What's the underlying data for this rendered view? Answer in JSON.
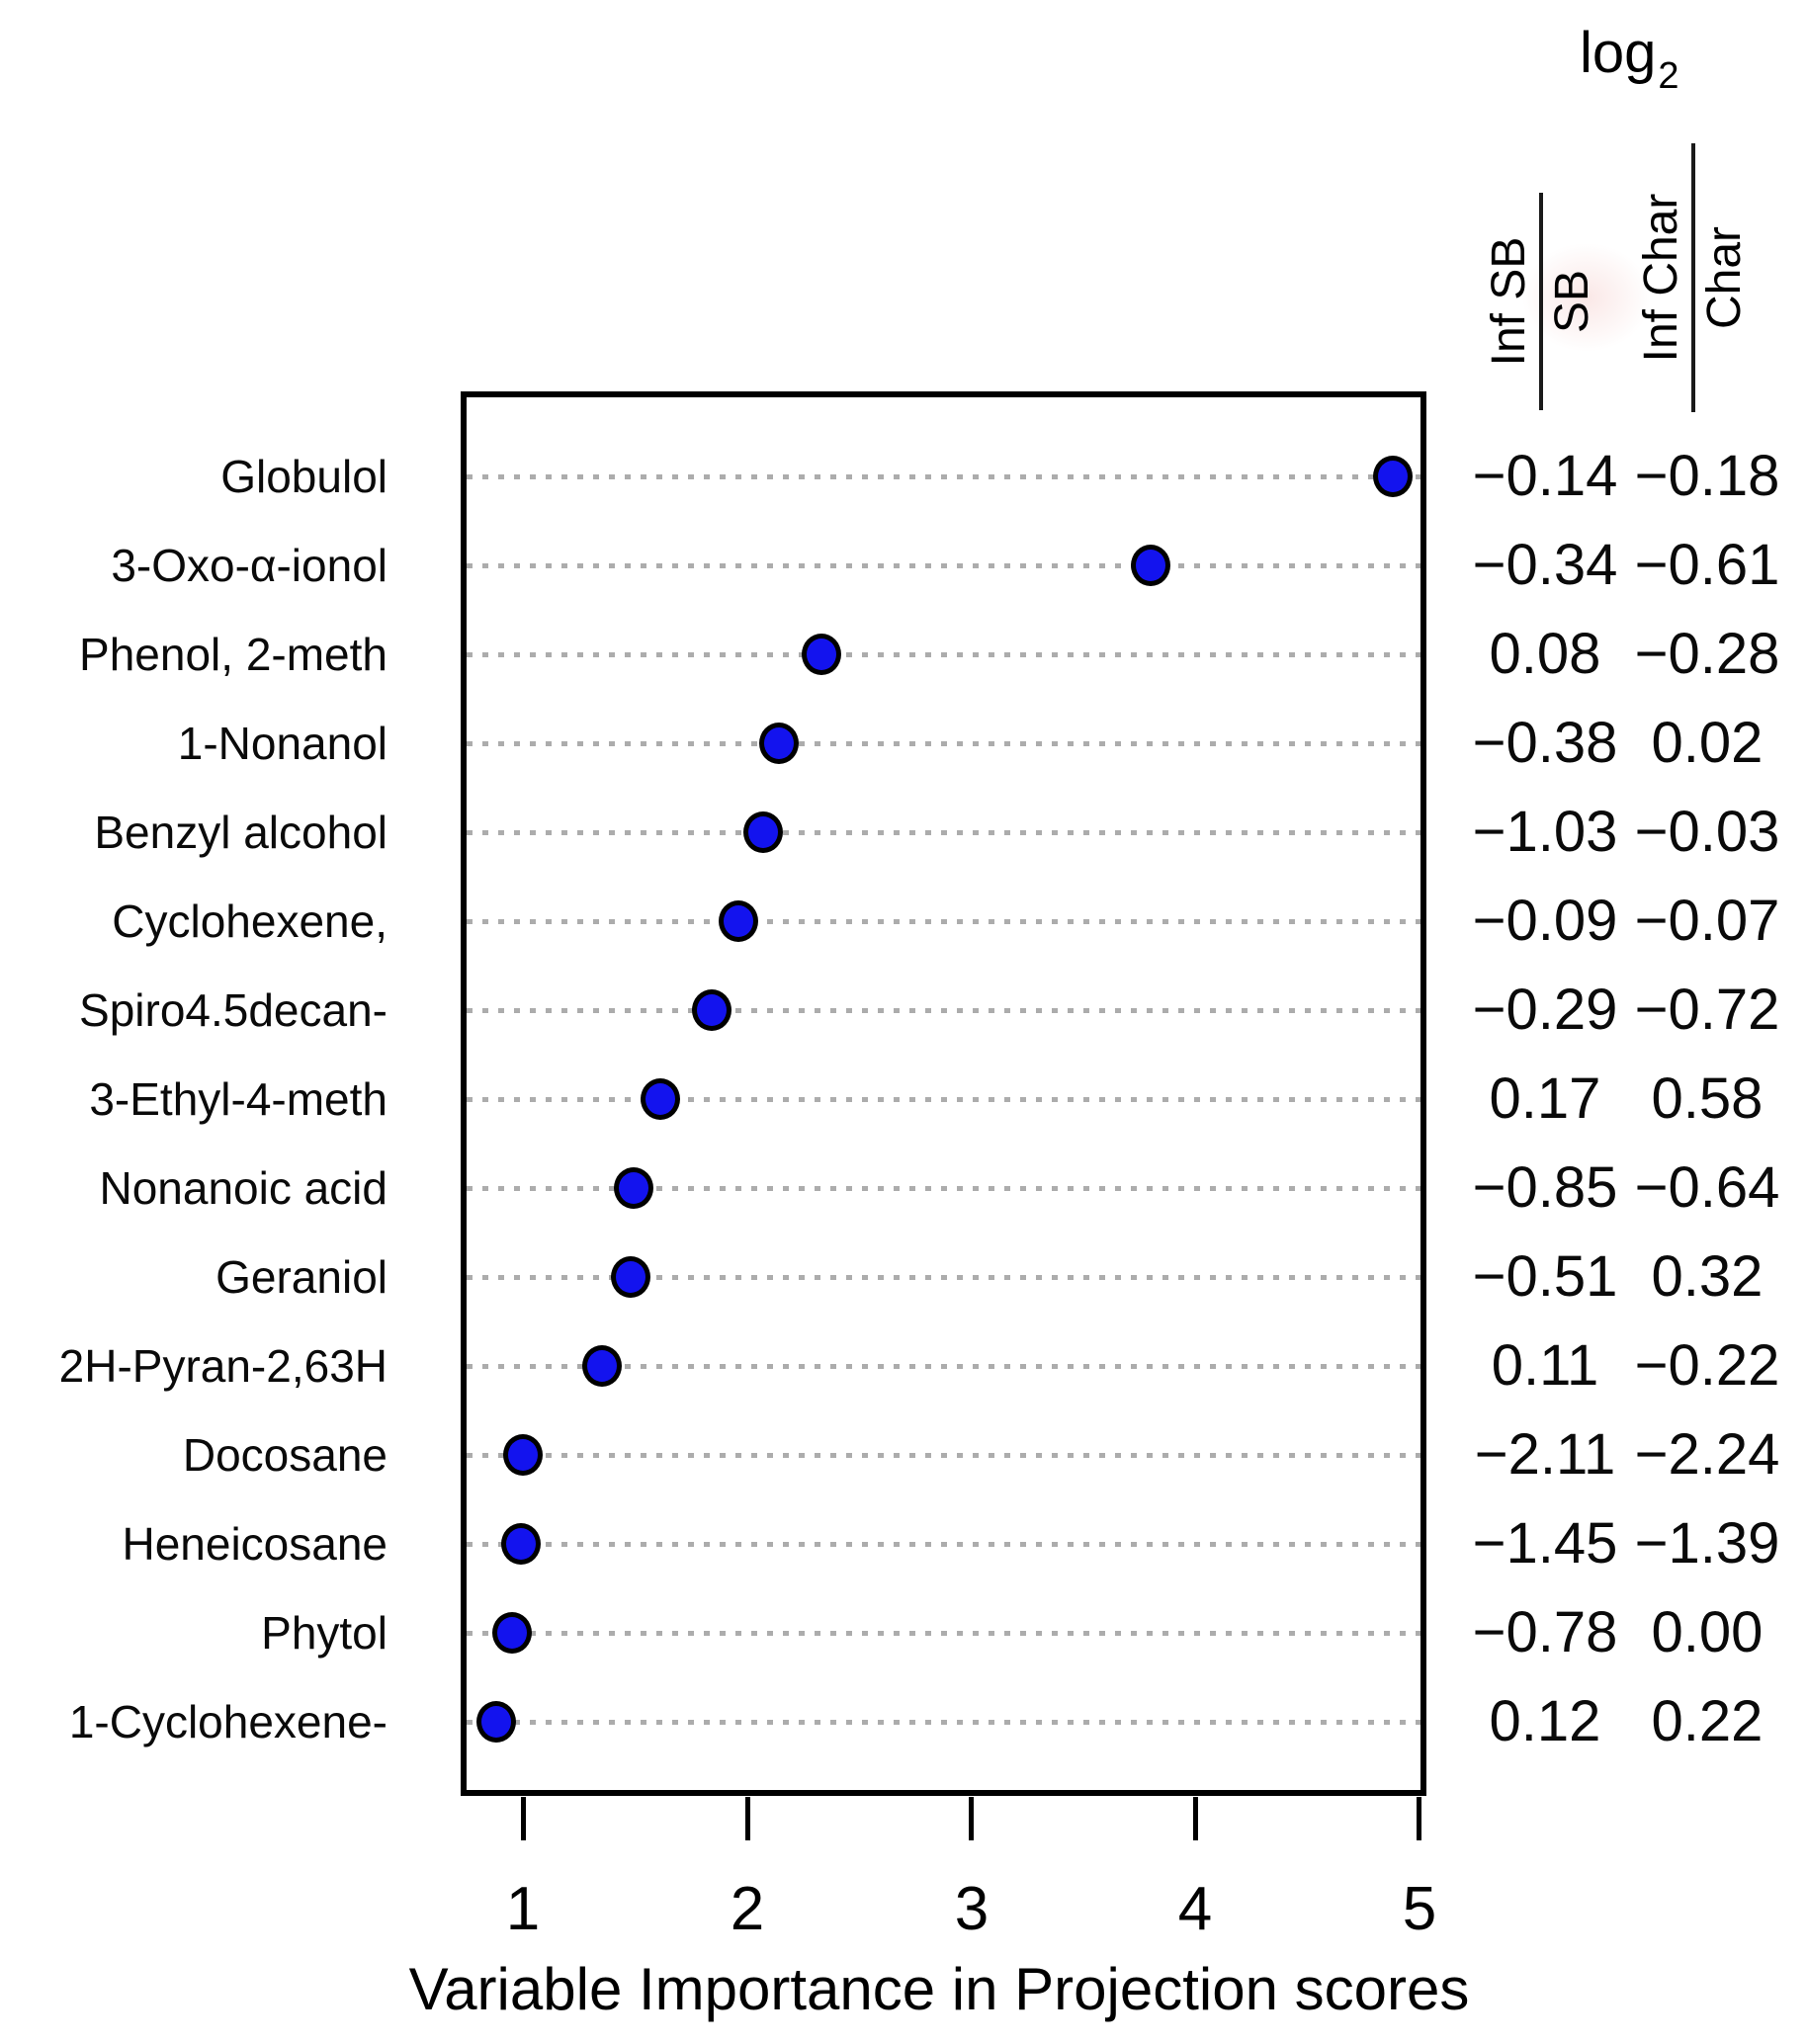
{
  "value_table": {
    "log_label": "log",
    "log_sub": "2",
    "columns": [
      {
        "numerator": "Inf SB",
        "denominator": "SB"
      },
      {
        "numerator": "Inf Char",
        "denominator": "Char"
      }
    ]
  },
  "chart_data": {
    "type": "scatter",
    "title": "",
    "xlabel": "Variable Importance in Projection scores",
    "ylabel": "",
    "x_ticks": [
      "1",
      "2",
      "3",
      "4",
      "5"
    ],
    "xlim": [
      0.72,
      5.03
    ],
    "grid": "horizontal-dotted",
    "legend": "none",
    "dot_color": "#1313ee",
    "dot_border_color": "#000000",
    "gridline_color": "#9e9e9e",
    "rows": [
      {
        "label": "Globulol",
        "vip": 4.88,
        "log2_inf_sb_over_sb": "−0.14",
        "log2_inf_char_over_char": "−0.18"
      },
      {
        "label": "3-Oxo-α-ionol",
        "vip": 3.8,
        "log2_inf_sb_over_sb": "−0.34",
        "log2_inf_char_over_char": "−0.61"
      },
      {
        "label": "Phenol, 2-meth",
        "vip": 2.33,
        "log2_inf_sb_over_sb": "0.08",
        "log2_inf_char_over_char": "−0.28"
      },
      {
        "label": "1-Nonanol",
        "vip": 2.14,
        "log2_inf_sb_over_sb": "−0.38",
        "log2_inf_char_over_char": "0.02"
      },
      {
        "label": "Benzyl alcohol",
        "vip": 2.07,
        "log2_inf_sb_over_sb": "−1.03",
        "log2_inf_char_over_char": "−0.03"
      },
      {
        "label": "Cyclohexene,",
        "vip": 1.96,
        "log2_inf_sb_over_sb": "−0.09",
        "log2_inf_char_over_char": "−0.07"
      },
      {
        "label": "Spiro4.5decan-",
        "vip": 1.84,
        "log2_inf_sb_over_sb": "−0.29",
        "log2_inf_char_over_char": "−0.72"
      },
      {
        "label": "3-Ethyl-4-meth",
        "vip": 1.61,
        "log2_inf_sb_over_sb": "0.17",
        "log2_inf_char_over_char": "0.58"
      },
      {
        "label": "Nonanoic acid",
        "vip": 1.49,
        "log2_inf_sb_over_sb": "−0.85",
        "log2_inf_char_over_char": "−0.64"
      },
      {
        "label": "Geraniol",
        "vip": 1.48,
        "log2_inf_sb_over_sb": "−0.51",
        "log2_inf_char_over_char": "0.32"
      },
      {
        "label": "2H-Pyran-2,63H",
        "vip": 1.35,
        "log2_inf_sb_over_sb": "0.11",
        "log2_inf_char_over_char": "−0.22"
      },
      {
        "label": "Docosane",
        "vip": 1.0,
        "log2_inf_sb_over_sb": "−2.11",
        "log2_inf_char_over_char": "−2.24"
      },
      {
        "label": "Heneicosane",
        "vip": 0.99,
        "log2_inf_sb_over_sb": "−1.45",
        "log2_inf_char_over_char": "−1.39"
      },
      {
        "label": "Phytol",
        "vip": 0.95,
        "log2_inf_sb_over_sb": "−0.78",
        "log2_inf_char_over_char": "0.00"
      },
      {
        "label": "1-Cyclohexene-",
        "vip": 0.88,
        "log2_inf_sb_over_sb": "0.12",
        "log2_inf_char_over_char": "0.22"
      }
    ]
  }
}
